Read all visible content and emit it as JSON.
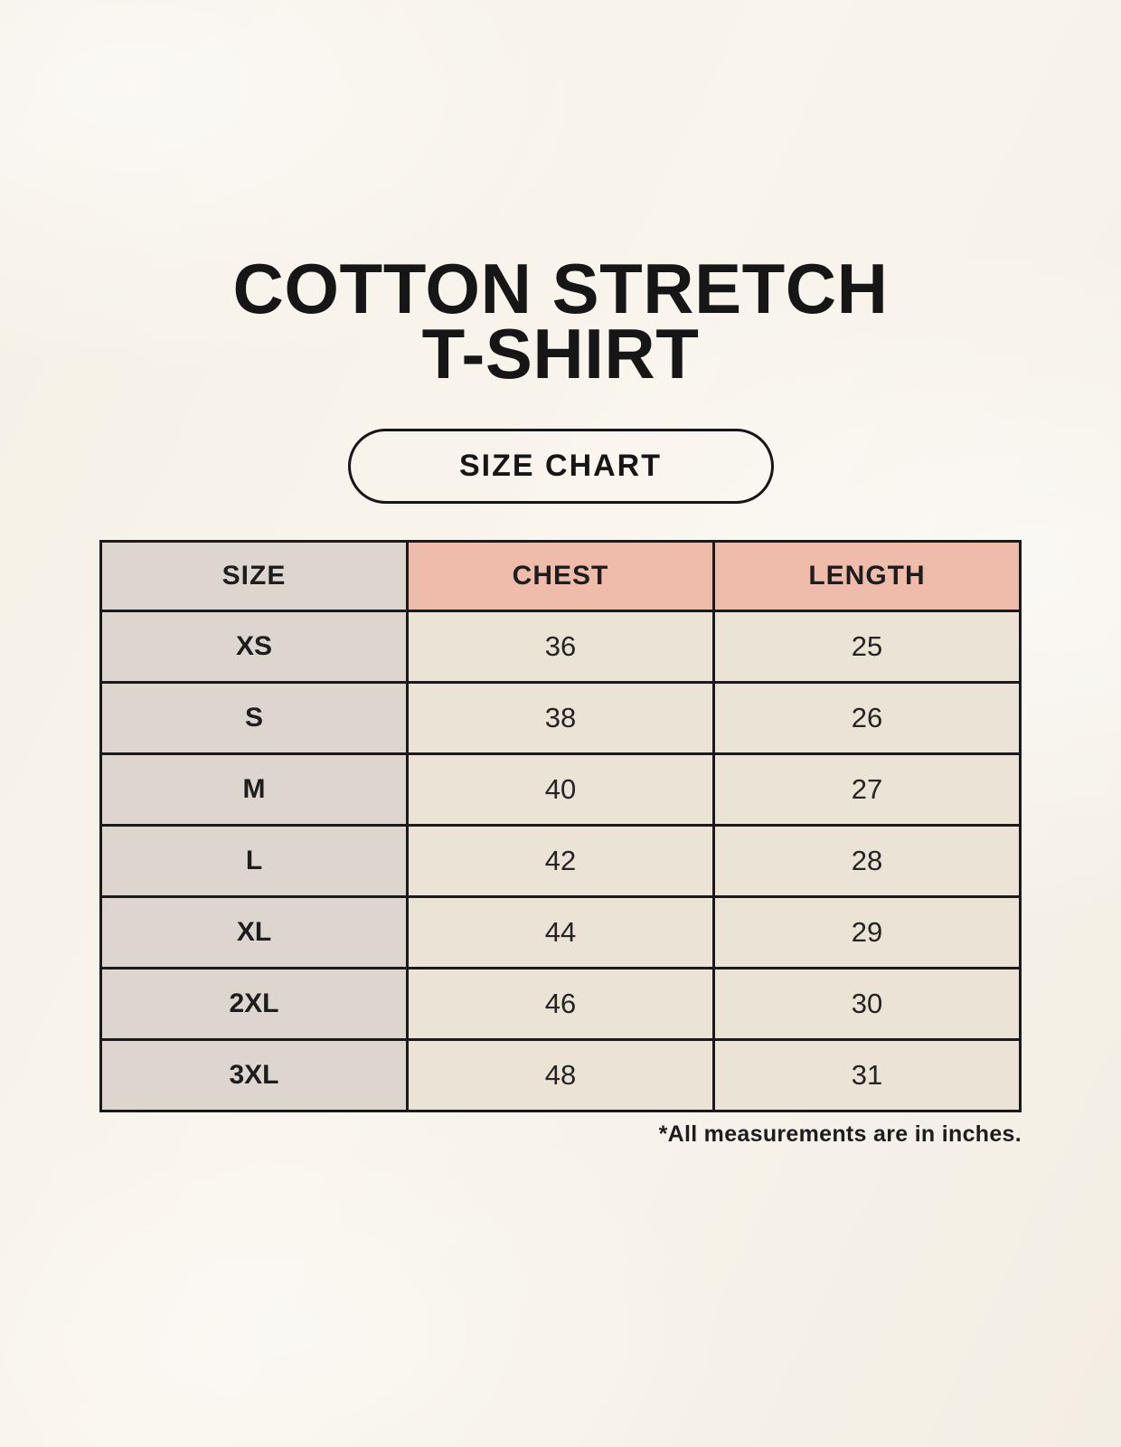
{
  "page": {
    "title_line1": "COTTON STRETCH",
    "title_line2": "T-SHIRT",
    "badge_label": "SIZE CHART",
    "footnote": "*All measurements are in inches."
  },
  "colors": {
    "page_background": "#f7f3ea",
    "header_accent_salmon": "#efbcab",
    "size_column_gray": "#ddd6cf",
    "data_cell_cream": "#eae3d6",
    "table_border": "#1a1a1a",
    "text": "#1d1d1d"
  },
  "chart_data": {
    "type": "table",
    "title": "COTTON STRETCH T-SHIRT",
    "subtitle": "SIZE CHART",
    "columns": [
      "SIZE",
      "CHEST",
      "LENGTH"
    ],
    "rows": [
      {
        "size": "XS",
        "chest": "36",
        "length": "25"
      },
      {
        "size": "S",
        "chest": "38",
        "length": "26"
      },
      {
        "size": "M",
        "chest": "40",
        "length": "27"
      },
      {
        "size": "L",
        "chest": "42",
        "length": "28"
      },
      {
        "size": "XL",
        "chest": "44",
        "length": "29"
      },
      {
        "size": "2XL",
        "chest": "46",
        "length": "30"
      },
      {
        "size": "3XL",
        "chest": "48",
        "length": "31"
      }
    ],
    "units": "inches",
    "note": "*All measurements are in inches."
  }
}
